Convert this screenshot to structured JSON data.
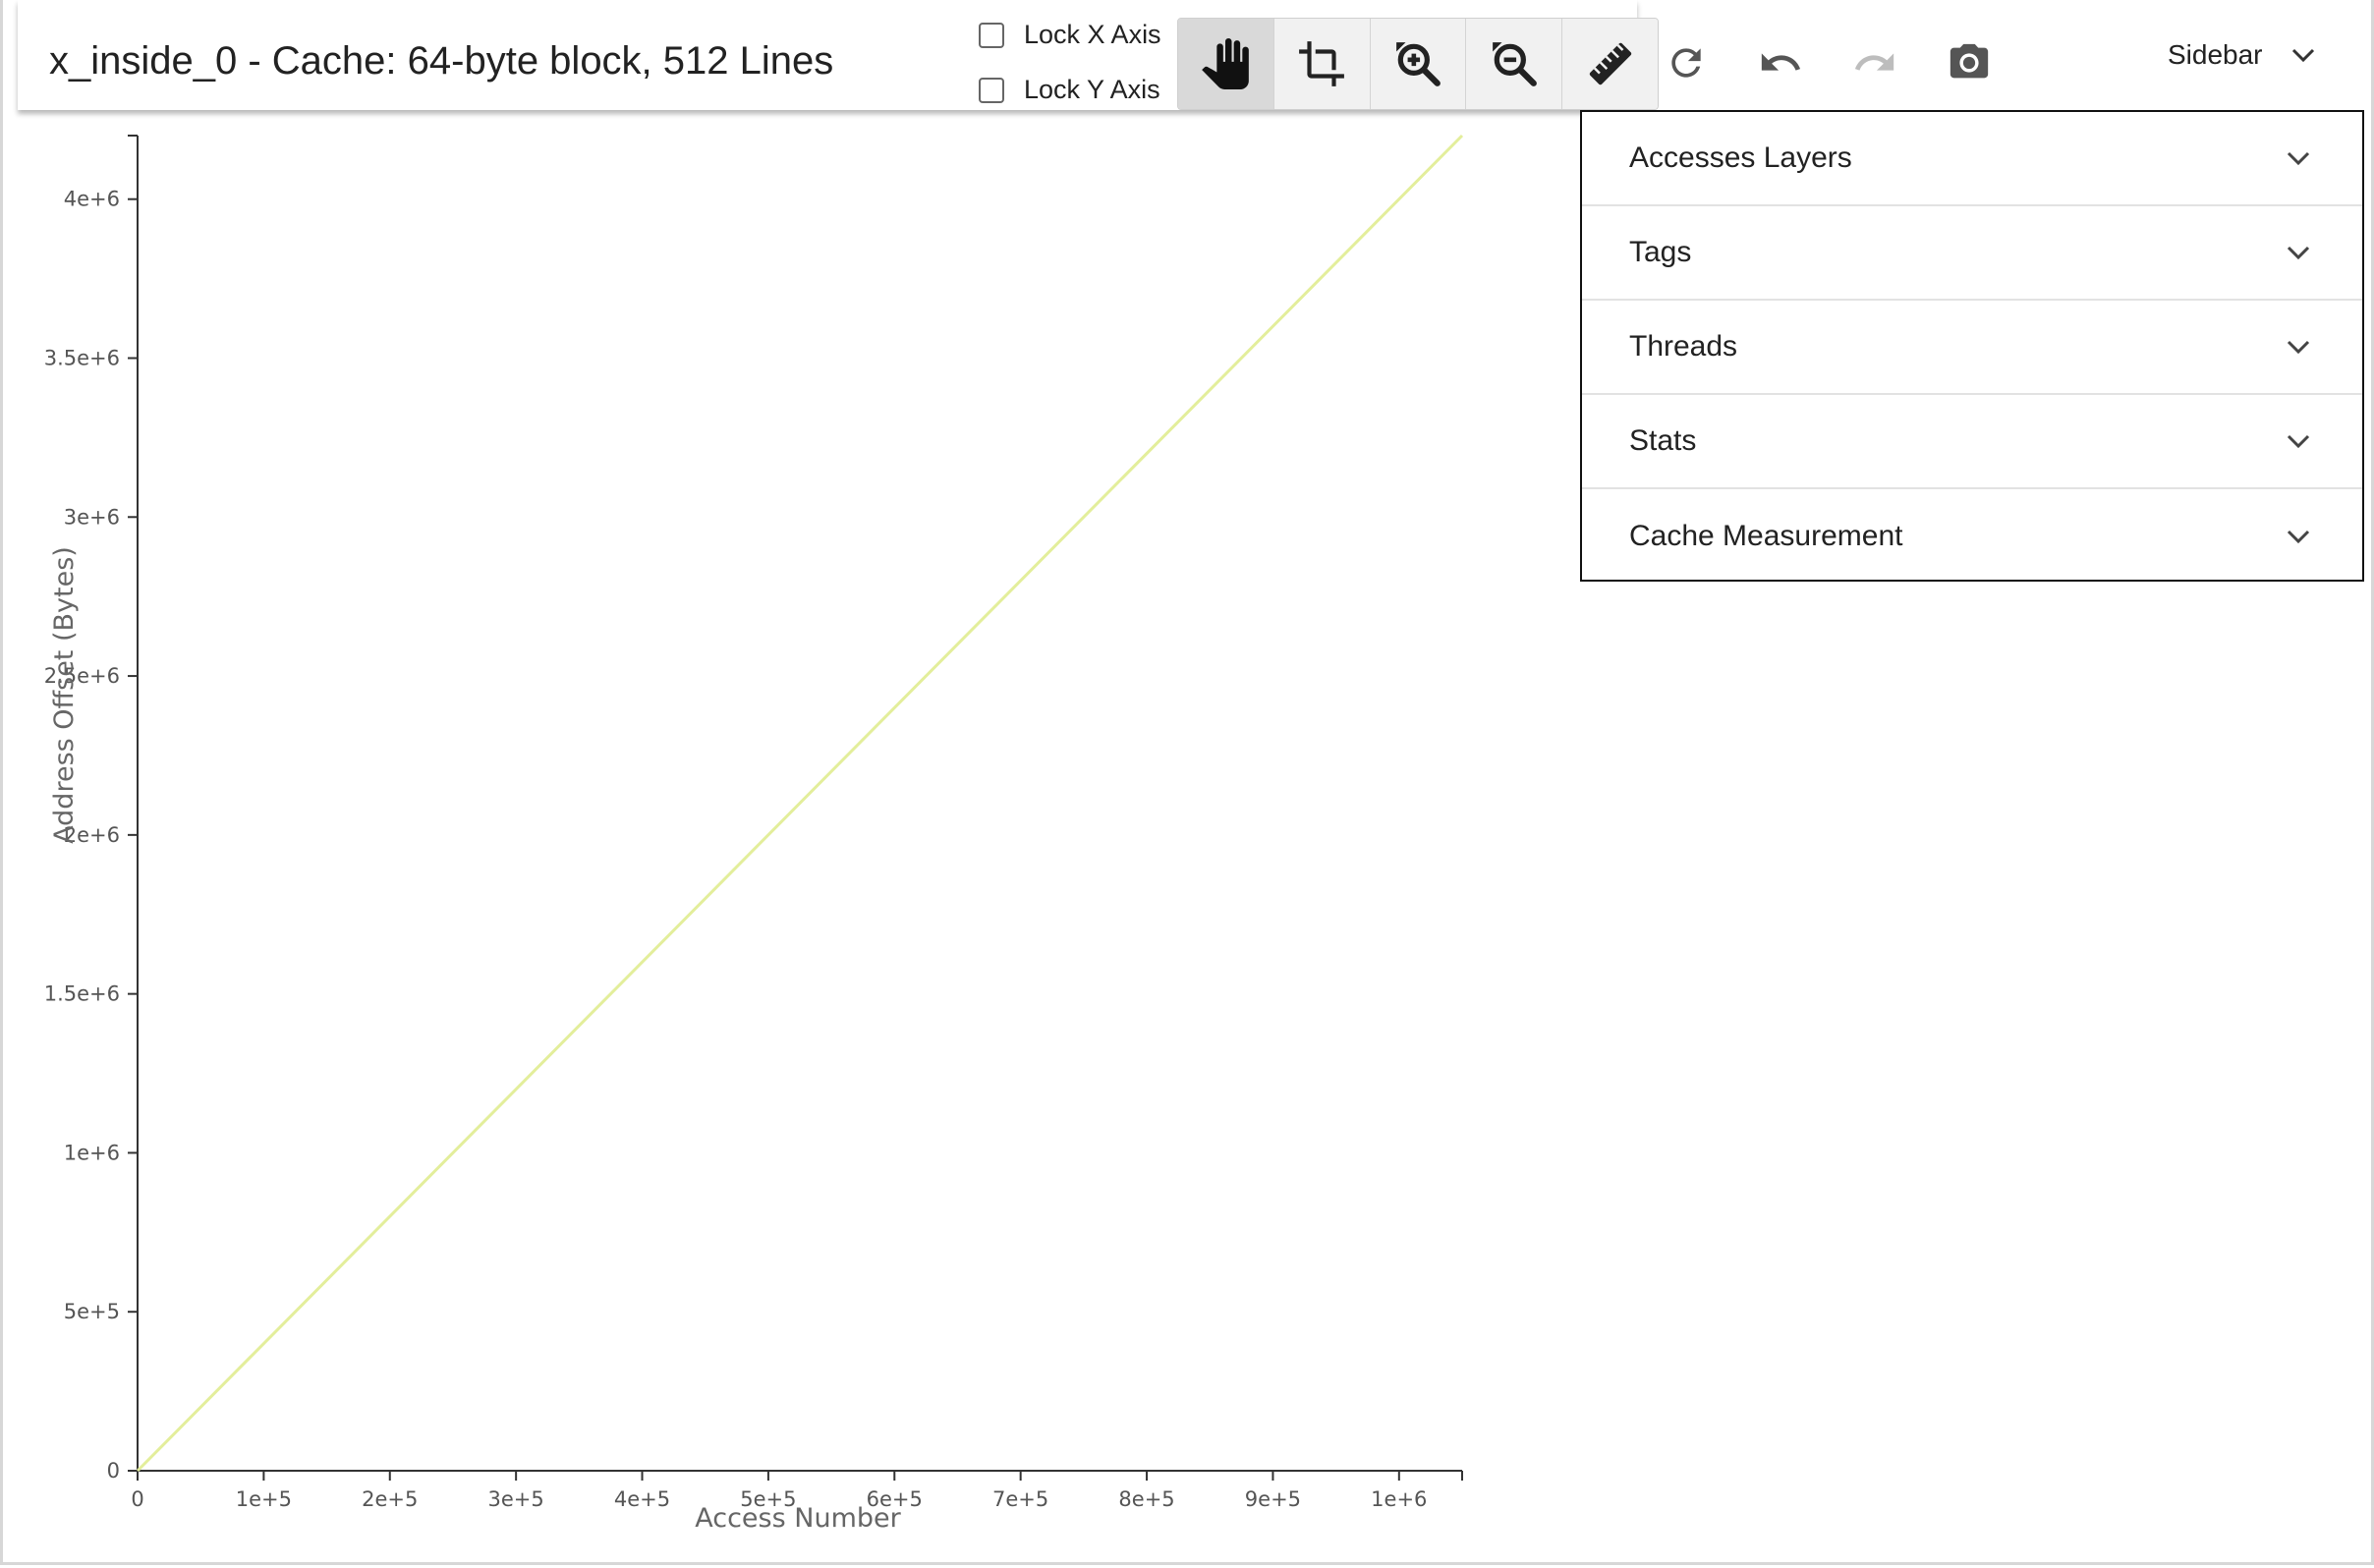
{
  "header": {
    "title": "x_inside_0 - Cache: 64-byte block, 512 Lines",
    "lock_x": "Lock X Axis",
    "lock_y": "Lock Y Axis",
    "tools": [
      {
        "icon": "hand-pan-icon",
        "active": true
      },
      {
        "icon": "crop-icon",
        "active": false
      },
      {
        "icon": "zoom-in-icon",
        "active": false
      },
      {
        "icon": "zoom-out-icon",
        "active": false
      },
      {
        "icon": "ruler-icon",
        "active": false
      }
    ],
    "actions": [
      "refresh-icon",
      "undo-icon",
      "redo-icon",
      "camera-icon"
    ],
    "sidebar_label": "Sidebar"
  },
  "sidebar": {
    "items": [
      {
        "label": "Accesses Layers"
      },
      {
        "label": "Tags"
      },
      {
        "label": "Threads"
      },
      {
        "label": "Stats"
      },
      {
        "label": "Cache Measurement"
      }
    ]
  },
  "colors": {
    "series_line": "#e3ee9b",
    "axis": "#333333",
    "active_tool": "#d9d9d9"
  },
  "chart_data": {
    "type": "line",
    "xlabel": "Access Number",
    "ylabel": "Address Offset (Bytes)",
    "xlim": [
      0,
      1050000
    ],
    "ylim": [
      0,
      4200000
    ],
    "x_ticks": [
      0,
      100000,
      200000,
      300000,
      400000,
      500000,
      600000,
      700000,
      800000,
      900000,
      1000000
    ],
    "x_tick_labels": [
      "0",
      "1e+5",
      "2e+5",
      "3e+5",
      "4e+5",
      "5e+5",
      "6e+5",
      "7e+5",
      "8e+5",
      "9e+5",
      "1e+6"
    ],
    "y_ticks": [
      0,
      500000,
      1000000,
      1500000,
      2000000,
      2500000,
      3000000,
      3500000,
      4000000
    ],
    "y_tick_labels": [
      "0",
      "5e+5",
      "1e+6",
      "1.5e+6",
      "2e+6",
      "2.5e+6",
      "3e+6",
      "3.5e+6",
      "4e+6"
    ],
    "series": [
      {
        "x": [
          0,
          1050000
        ],
        "y": [
          0,
          4200000
        ]
      }
    ],
    "grid": false
  }
}
